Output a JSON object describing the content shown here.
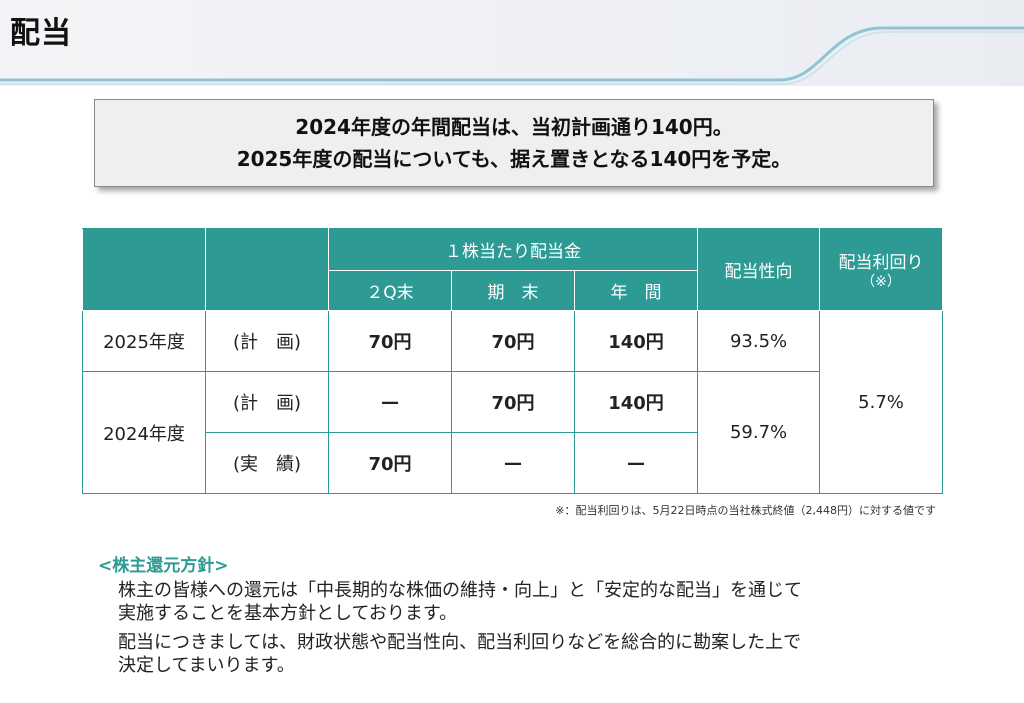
{
  "header": {
    "title": "配当"
  },
  "summary": {
    "line1": "2024年度の年間配当は、当初計画通り140円。",
    "line2": "2025年度の配当についても、据え置きとなる140円を予定。"
  },
  "table": {
    "group_header": "１株当たり配当金",
    "col_2q": "２Q末",
    "col_kimatsu": "期　末",
    "col_nenkan": "年　間",
    "col_payout": "配当性向",
    "col_yield": "配当利回り",
    "col_yield_note": "（※）",
    "rows": [
      {
        "year": "2025年度",
        "type": "(計　画)",
        "q2": "70円",
        "kimatsu": "70円",
        "nenkan": "140円",
        "payout": "93.5%"
      },
      {
        "year": "2024年度",
        "type": "(計　画)",
        "q2": "—",
        "kimatsu": "70円",
        "nenkan": "140円",
        "payout": "59.7%"
      },
      {
        "type": "(実　績)",
        "q2": "70円",
        "kimatsu": "—",
        "nenkan": "—"
      }
    ],
    "yield_value": "5.7%"
  },
  "footnote": "※：配当利回りは、5月22日時点の当社株式終値（2,448円）に対する値です",
  "policy": {
    "title": "<株主還元方針>",
    "para1_line1": "株主の皆様への還元は「中長期的な株価の維持・向上」と「安定的な配当」を通じて",
    "para1_line2": "実施することを基本方針としております。",
    "para2_line1": "配当につきましては、財政状態や配当性向、配当利回りなどを総合的に勘案した上で",
    "para2_line2": "決定してまいります。"
  },
  "colors": {
    "accent": "#2e9a94",
    "header_line": "#5ab2c9"
  }
}
